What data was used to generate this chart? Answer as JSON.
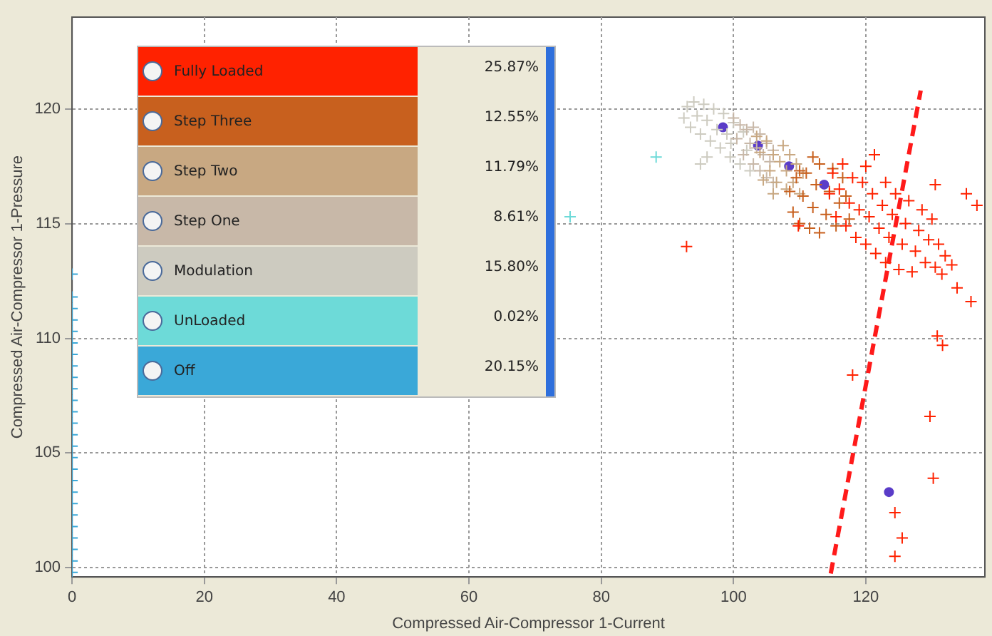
{
  "chart_data": {
    "type": "scatter",
    "xlabel": "Compressed Air-Compressor 1-Current",
    "ylabel": "Compressed Air-Compressor 1-Pressure",
    "xlim": [
      0,
      138
    ],
    "xticks": [
      0,
      20,
      40,
      60,
      80,
      100,
      120
    ],
    "ylim": [
      99.6,
      124
    ],
    "yticks": [
      100,
      105,
      110,
      115,
      120
    ],
    "grid": true,
    "legend": "top left",
    "marker": "cross",
    "annotations": [
      "25.87%",
      "12.55%",
      "11.79%",
      "8.61%",
      "15.80%",
      "0.02%",
      "20.15%"
    ],
    "series": [
      {
        "name": "Fully Loaded",
        "color": "#ff2200",
        "x": [
          114.5,
          115,
          115.5,
          116,
          116.5,
          117,
          117.5,
          118,
          118.5,
          119,
          119.5,
          120,
          120,
          120.5,
          121,
          121.5,
          122,
          122.5,
          123,
          123,
          123.5,
          124,
          124.5,
          125,
          125.5,
          126,
          126.5,
          127,
          127.5,
          128,
          128.5,
          129,
          129.5,
          130,
          130.5,
          131,
          131.5,
          132,
          133,
          92.9,
          118,
          129.7,
          130.2,
          124.4,
          125.5,
          124.4,
          130.8,
          131.6,
          133.8,
          135.9,
          135.2,
          136.8,
          130.5,
          121.3,
          109.8
        ],
        "values": [
          116.3,
          117.2,
          115.3,
          116.5,
          117.6,
          114.9,
          115.9,
          117.0,
          114.4,
          115.6,
          116.8,
          114.1,
          117.5,
          115.3,
          116.3,
          113.7,
          114.8,
          115.8,
          116.8,
          113.3,
          114.4,
          115.4,
          116.3,
          113.0,
          114.1,
          115.0,
          116.0,
          112.9,
          113.8,
          114.7,
          115.6,
          113.3,
          114.3,
          115.2,
          113.1,
          114.1,
          112.8,
          113.6,
          113.2,
          114.0,
          108.4,
          106.6,
          103.9,
          102.4,
          101.3,
          100.5,
          110.1,
          109.7,
          112.2,
          111.6,
          116.3,
          115.8,
          116.7,
          118.0,
          114.9
        ]
      },
      {
        "name": "Step Three",
        "color": "#c8601e",
        "x": [
          108.5,
          109,
          109.5,
          110,
          110.5,
          111,
          111.5,
          112,
          112.5,
          113,
          113,
          114,
          114.5,
          115,
          115.5,
          116,
          116.5,
          117,
          117.5,
          110,
          112
        ],
        "values": [
          116.4,
          115.5,
          117.0,
          115.0,
          116.2,
          117.2,
          114.8,
          115.7,
          116.7,
          117.6,
          114.6,
          115.4,
          116.4,
          117.4,
          114.9,
          115.9,
          117.0,
          116.2,
          115.2,
          117.3,
          117.9
        ]
      },
      {
        "name": "Step Two",
        "color": "#c8a882",
        "x": [
          103.5,
          104,
          105,
          105.5,
          106,
          106.5,
          107,
          107.5,
          108,
          108,
          108.5,
          109,
          109.5,
          110,
          110.5,
          104.5,
          106
        ],
        "values": [
          118.8,
          118.1,
          118.6,
          117.3,
          118.0,
          116.8,
          117.7,
          118.4,
          116.5,
          117.3,
          118.0,
          116.8,
          117.6,
          116.3,
          117.2,
          116.9,
          116.3
        ]
      },
      {
        "name": "Step One",
        "color": "#c8b8a8",
        "x": [
          100,
          100.5,
          101,
          101.5,
          102,
          102.5,
          103,
          103,
          103.5,
          104,
          104,
          104.5,
          105,
          105,
          105.5,
          106,
          106
        ],
        "values": [
          119.6,
          118.7,
          119.3,
          118.0,
          119.1,
          118.5,
          117.6,
          119.2,
          118.3,
          117.3,
          118.9,
          118.0,
          117.0,
          118.5,
          117.7,
          118.2,
          116.8
        ]
      },
      {
        "name": "Modulation",
        "color": "#cdcbc0",
        "x": [
          92.5,
          93,
          93.5,
          94,
          94.5,
          95,
          95.5,
          96,
          96.5,
          97,
          97.5,
          98,
          98.5,
          99,
          99.5,
          100,
          99.6,
          101,
          101.5,
          102,
          102.5,
          96,
          95
        ],
        "values": [
          119.6,
          120.1,
          119.2,
          120.3,
          119.7,
          118.9,
          120.2,
          119.5,
          118.6,
          120.0,
          119.1,
          118.3,
          119.8,
          118.9,
          117.9,
          119.4,
          118.5,
          117.6,
          119.0,
          118.2,
          117.3,
          117.9,
          117.6
        ]
      },
      {
        "name": "UnLoaded",
        "color": "#6ddad8",
        "x": [
          88.3,
          75.3
        ],
        "values": [
          117.9,
          115.3
        ]
      },
      {
        "name": "Off",
        "color": "#3aa8d8",
        "x": [
          0,
          0,
          0,
          0,
          0,
          0,
          0,
          0,
          0,
          0,
          0,
          0,
          0,
          0,
          0,
          0,
          0,
          0,
          0,
          0,
          0,
          0,
          0,
          0,
          0,
          0
        ],
        "values": [
          99.8,
          100.3,
          100.8,
          101.3,
          101.8,
          102.3,
          102.8,
          103.3,
          103.8,
          104.3,
          104.8,
          105.3,
          105.8,
          106.3,
          106.8,
          107.3,
          107.8,
          108.3,
          108.8,
          109.3,
          109.8,
          110.3,
          110.8,
          111.3,
          111.8,
          112.8
        ]
      },
      {
        "type": "line",
        "color": "#ff1a1a",
        "line_style": "dashed",
        "marker": "none",
        "x": [
          114.7,
          128.3
        ],
        "values": [
          99.75,
          120.8
        ]
      },
      {
        "color": "#5a3cc8",
        "marker": "circle",
        "x": [
          98.4,
          103.7,
          108.4,
          113.7,
          123.5
        ],
        "values": [
          119.2,
          118.4,
          117.5,
          116.7,
          103.3
        ]
      }
    ]
  }
}
